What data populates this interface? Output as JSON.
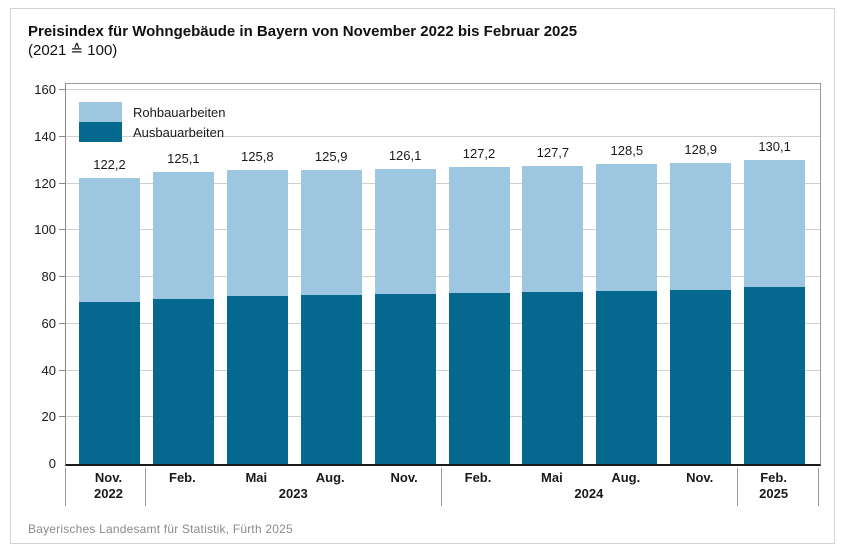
{
  "header": {
    "title": "Preisindex für Wohngebäude in Bayern von November 2022 bis Februar 2025",
    "subtitle": "(2021 ≙ 100)"
  },
  "legend": {
    "items": [
      {
        "label": "Rohbauarbeiten",
        "color": "#9DC6E0"
      },
      {
        "label": "Ausbauarbeiten",
        "color": "#05688F"
      }
    ]
  },
  "footer": {
    "source": "Bayerisches Landesamt für Statistik, Fürth 2025"
  },
  "chart_data": {
    "type": "bar",
    "stacked": true,
    "title": "Preisindex für Wohngebäude in Bayern von November 2022 bis Februar 2025",
    "subtitle": "(2021 ≙ 100)",
    "categories": [
      "Nov. 2022",
      "Feb. 2023",
      "Mai 2023",
      "Aug. 2023",
      "Nov. 2023",
      "Feb. 2024",
      "Mai 2024",
      "Aug. 2024",
      "Nov. 2024",
      "Feb. 2025"
    ],
    "month_labels": [
      "Nov.",
      "Feb.",
      "Mai",
      "Aug.",
      "Nov.",
      "Feb.",
      "Mai",
      "Aug.",
      "Nov.",
      "Feb."
    ],
    "year_groups": [
      {
        "label": "2022",
        "from": 0,
        "to": 0
      },
      {
        "label": "2023",
        "from": 1,
        "to": 4
      },
      {
        "label": "2024",
        "from": 5,
        "to": 8
      },
      {
        "label": "2025",
        "from": 9,
        "to": 9
      }
    ],
    "series": [
      {
        "name": "Ausbauarbeiten",
        "position": "bottom",
        "color": "#05688F",
        "values": [
          69.1,
          70.6,
          71.7,
          72.3,
          72.7,
          73.3,
          73.8,
          74.1,
          74.3,
          75.6
        ]
      },
      {
        "name": "Rohbauarbeiten",
        "position": "top",
        "color": "#9DC6E0",
        "values": [
          53.1,
          54.5,
          54.1,
          53.6,
          53.4,
          53.9,
          53.9,
          54.4,
          54.6,
          54.5
        ]
      }
    ],
    "totals": [
      122.2,
      125.1,
      125.8,
      125.9,
      126.1,
      127.2,
      127.7,
      128.5,
      128.9,
      130.1
    ],
    "total_labels": [
      "122,2",
      "125,1",
      "125,8",
      "125,9",
      "126,1",
      "127,2",
      "127,7",
      "128,5",
      "128,9",
      "130,1"
    ],
    "y_axis": {
      "min": 0,
      "max": 160,
      "tick_step": 20,
      "ticks": [
        0,
        20,
        40,
        60,
        80,
        100,
        120,
        140,
        160
      ]
    },
    "grid": true,
    "legend_position": "top-left",
    "value_labels_shown": "totals"
  }
}
